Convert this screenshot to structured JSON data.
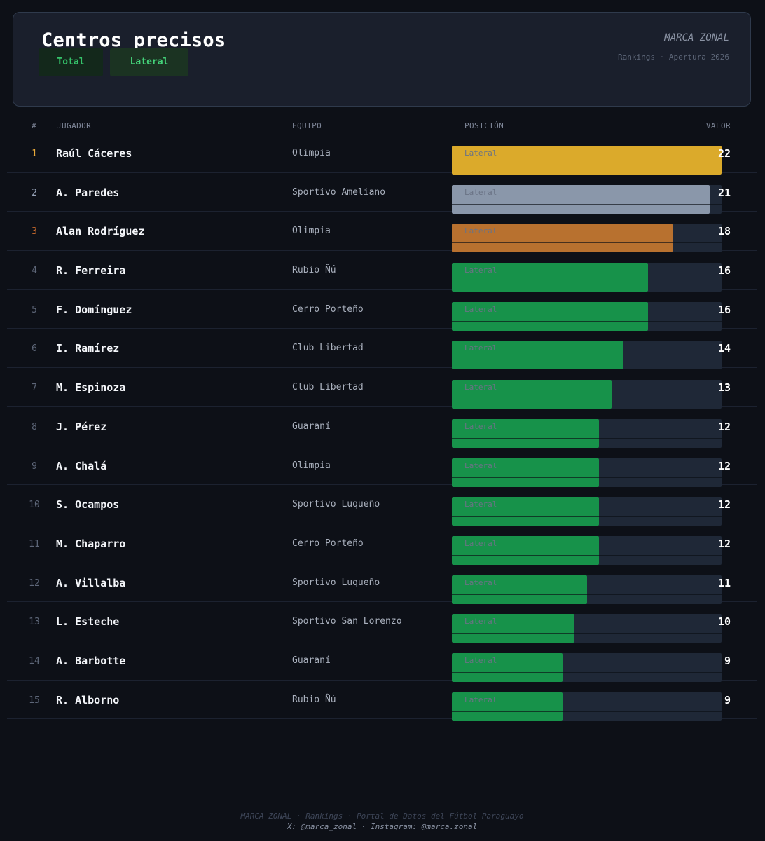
{
  "header": {
    "title": "Centros precisos",
    "brand": "MARCA ZONAL",
    "subtitle": "Rankings · Apertura 2026",
    "tabs": [
      {
        "label": "Total",
        "active": false
      },
      {
        "label": "Lateral",
        "active": true
      }
    ]
  },
  "columns": {
    "rank": "#",
    "player": "JUGADOR",
    "team": "EQUIPO",
    "position": "POSICIÓN",
    "value": "VALOR"
  },
  "colors": {
    "gold": "#dbaa2b",
    "silver": "#8a97aa",
    "bronze": "#b8712f",
    "default_bar": "#17924a",
    "rank_gold": "#e8a93a",
    "rank_silver": "#97a3b8",
    "rank_bronze": "#c86a2c",
    "rank_default": "#5d6678"
  },
  "max_value": 22,
  "rows": [
    {
      "rank": "1",
      "player": "Raúl Cáceres",
      "team": "Olimpia",
      "position": "Lateral",
      "value": 22
    },
    {
      "rank": "2",
      "player": "A. Paredes",
      "team": "Sportivo Ameliano",
      "position": "Lateral",
      "value": 21
    },
    {
      "rank": "3",
      "player": "Alan Rodríguez",
      "team": "Olimpia",
      "position": "Lateral",
      "value": 18
    },
    {
      "rank": "4",
      "player": "R. Ferreira",
      "team": "Rubio Ñú",
      "position": "Lateral",
      "value": 16
    },
    {
      "rank": "5",
      "player": "F. Domínguez",
      "team": "Cerro Porteño",
      "position": "Lateral",
      "value": 16
    },
    {
      "rank": "6",
      "player": "I. Ramírez",
      "team": "Club Libertad",
      "position": "Lateral",
      "value": 14
    },
    {
      "rank": "7",
      "player": "M. Espinoza",
      "team": "Club Libertad",
      "position": "Lateral",
      "value": 13
    },
    {
      "rank": "8",
      "player": "J. Pérez",
      "team": "Guaraní",
      "position": "Lateral",
      "value": 12
    },
    {
      "rank": "9",
      "player": "A. Chalá",
      "team": "Olimpia",
      "position": "Lateral",
      "value": 12
    },
    {
      "rank": "10",
      "player": "S. Ocampos",
      "team": "Sportivo Luqueño",
      "position": "Lateral",
      "value": 12
    },
    {
      "rank": "11",
      "player": "M. Chaparro",
      "team": "Cerro Porteño",
      "position": "Lateral",
      "value": 12
    },
    {
      "rank": "12",
      "player": "A. Villalba",
      "team": "Sportivo Luqueño",
      "position": "Lateral",
      "value": 11
    },
    {
      "rank": "13",
      "player": "L. Esteche",
      "team": "Sportivo San Lorenzo",
      "position": "Lateral",
      "value": 10
    },
    {
      "rank": "14",
      "player": "A. Barbotte",
      "team": "Guaraní",
      "position": "Lateral",
      "value": 9
    },
    {
      "rank": "15",
      "player": "R. Alborno",
      "team": "Rubio Ñú",
      "position": "Lateral",
      "value": 9
    }
  ],
  "footer": {
    "line1": "MARCA ZONAL · Rankings · Portal de Datos del Fútbol Paraguayo",
    "line2": "X: @marca_zonal  ·  Instagram: @marca.zonal"
  }
}
